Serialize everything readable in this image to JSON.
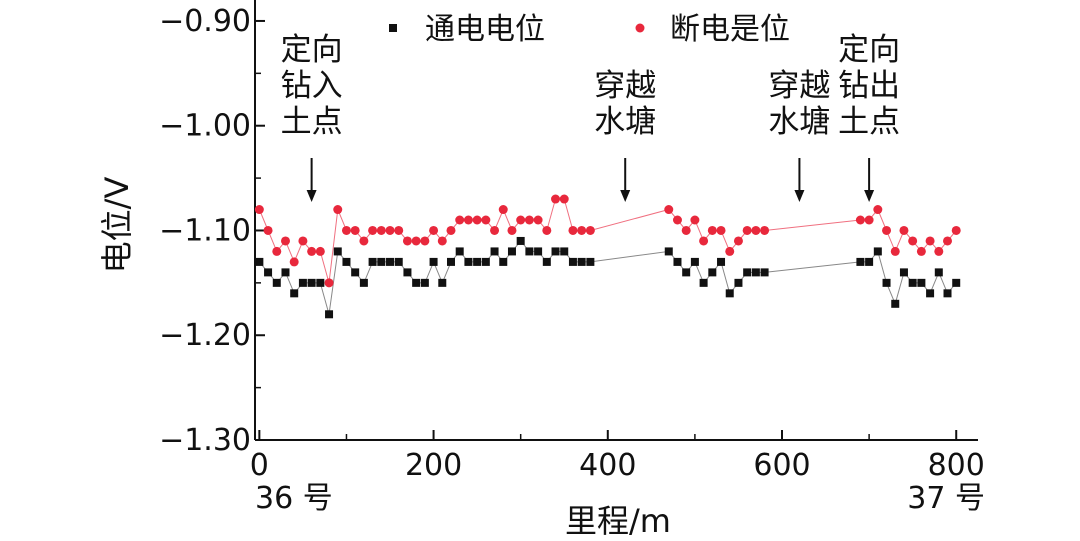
{
  "chart_data": {
    "type": "scatter",
    "xlabel": "里程/m",
    "ylabel": "电位/V",
    "xlim": [
      -5,
      825
    ],
    "ylim": [
      -1.3,
      -0.88
    ],
    "x_ticks": [
      0,
      200,
      400,
      600,
      800
    ],
    "x_tick_labels": [
      "0",
      "200",
      "400",
      "600",
      "800"
    ],
    "y_ticks": [
      -0.9,
      -1.0,
      -1.1,
      -1.2,
      -1.3
    ],
    "y_tick_labels": [
      "−0.90",
      "−1.00",
      "−1.10",
      "−1.20",
      "−1.30"
    ],
    "x_end_labels": {
      "start": "36 号",
      "end": "37 号"
    },
    "legend_position": "top",
    "grid": false,
    "series": [
      {
        "name": "通电电位",
        "color": "#111111",
        "line_color": "#888888",
        "marker": "square",
        "x": [
          0,
          10,
          20,
          30,
          40,
          50,
          60,
          70,
          80,
          90,
          100,
          110,
          120,
          130,
          140,
          150,
          160,
          170,
          180,
          190,
          200,
          210,
          220,
          230,
          240,
          250,
          260,
          270,
          280,
          290,
          300,
          310,
          320,
          330,
          340,
          350,
          360,
          370,
          380,
          470,
          480,
          490,
          500,
          510,
          520,
          530,
          540,
          550,
          560,
          570,
          580,
          690,
          700,
          710,
          720,
          730,
          740,
          750,
          760,
          770,
          780,
          790,
          800
        ],
        "y": [
          -1.13,
          -1.14,
          -1.15,
          -1.14,
          -1.16,
          -1.15,
          -1.15,
          -1.15,
          -1.18,
          -1.12,
          -1.13,
          -1.14,
          -1.15,
          -1.13,
          -1.13,
          -1.13,
          -1.13,
          -1.14,
          -1.15,
          -1.15,
          -1.13,
          -1.15,
          -1.13,
          -1.12,
          -1.13,
          -1.13,
          -1.13,
          -1.12,
          -1.13,
          -1.12,
          -1.11,
          -1.12,
          -1.12,
          -1.13,
          -1.12,
          -1.12,
          -1.13,
          -1.13,
          -1.13,
          -1.12,
          -1.13,
          -1.14,
          -1.13,
          -1.15,
          -1.14,
          -1.13,
          -1.16,
          -1.15,
          -1.14,
          -1.14,
          -1.14,
          -1.13,
          -1.13,
          -1.12,
          -1.15,
          -1.17,
          -1.14,
          -1.15,
          -1.15,
          -1.16,
          -1.14,
          -1.16,
          -1.15
        ]
      },
      {
        "name": "断电是位",
        "color": "#e8283c",
        "line_color": "#f07080",
        "marker": "circle",
        "x": [
          0,
          10,
          20,
          30,
          40,
          50,
          60,
          70,
          80,
          90,
          100,
          110,
          120,
          130,
          140,
          150,
          160,
          170,
          180,
          190,
          200,
          210,
          220,
          230,
          240,
          250,
          260,
          270,
          280,
          290,
          300,
          310,
          320,
          330,
          340,
          350,
          360,
          370,
          380,
          470,
          480,
          490,
          500,
          510,
          520,
          530,
          540,
          550,
          560,
          570,
          580,
          690,
          700,
          710,
          720,
          730,
          740,
          750,
          760,
          770,
          780,
          790,
          800
        ],
        "y": [
          -1.08,
          -1.1,
          -1.12,
          -1.11,
          -1.13,
          -1.11,
          -1.12,
          -1.12,
          -1.15,
          -1.08,
          -1.1,
          -1.1,
          -1.11,
          -1.1,
          -1.1,
          -1.1,
          -1.1,
          -1.11,
          -1.11,
          -1.11,
          -1.1,
          -1.11,
          -1.1,
          -1.09,
          -1.09,
          -1.09,
          -1.09,
          -1.1,
          -1.08,
          -1.1,
          -1.09,
          -1.09,
          -1.09,
          -1.1,
          -1.07,
          -1.07,
          -1.1,
          -1.1,
          -1.1,
          -1.08,
          -1.09,
          -1.1,
          -1.09,
          -1.11,
          -1.1,
          -1.1,
          -1.12,
          -1.11,
          -1.1,
          -1.1,
          -1.1,
          -1.09,
          -1.09,
          -1.08,
          -1.1,
          -1.12,
          -1.1,
          -1.11,
          -1.12,
          -1.11,
          -1.12,
          -1.11,
          -1.1
        ]
      }
    ],
    "annotations": [
      {
        "lines": [
          "定向",
          "钻入",
          "土点"
        ],
        "x": 60
      },
      {
        "lines": [
          "穿越",
          "水塘"
        ],
        "x": 420
      },
      {
        "lines": [
          "穿越",
          "水塘"
        ],
        "x": 620
      },
      {
        "lines": [
          "定向",
          "钻出",
          "土点"
        ],
        "x": 700
      }
    ]
  }
}
